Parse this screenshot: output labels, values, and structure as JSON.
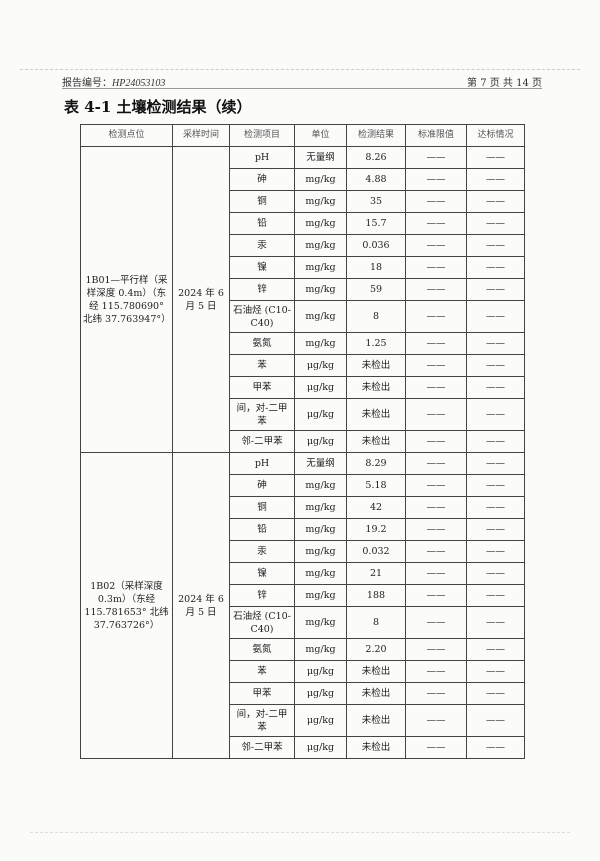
{
  "header": {
    "report_no_label": "报告编号：",
    "report_no": "HP24053103",
    "page_text": "第 7 页 共 14 页"
  },
  "title": "表 4-1 土壤检测结果（续）",
  "columns": [
    "检测点位",
    "采样时间",
    "检测项目",
    "单位",
    "检测结果",
    "标准限值",
    "达标情况"
  ],
  "groups": [
    {
      "location": "1B01—平行样（采样深度 0.4m）（东经 115.780690° 北纬 37.763947°）",
      "date": "2024 年 6 月 5 日",
      "rows": [
        {
          "item": "pH",
          "unit": "无量纲",
          "result": "8.26",
          "limit": "——",
          "status": "——"
        },
        {
          "item": "砷",
          "unit": "mg/kg",
          "result": "4.88",
          "limit": "——",
          "status": "——"
        },
        {
          "item": "铜",
          "unit": "mg/kg",
          "result": "35",
          "limit": "——",
          "status": "——"
        },
        {
          "item": "铅",
          "unit": "mg/kg",
          "result": "15.7",
          "limit": "——",
          "status": "——"
        },
        {
          "item": "汞",
          "unit": "mg/kg",
          "result": "0.036",
          "limit": "——",
          "status": "——"
        },
        {
          "item": "镍",
          "unit": "mg/kg",
          "result": "18",
          "limit": "——",
          "status": "——"
        },
        {
          "item": "锌",
          "unit": "mg/kg",
          "result": "59",
          "limit": "——",
          "status": "——"
        },
        {
          "item": "石油烃 (C10-C40)",
          "unit": "mg/kg",
          "result": "8",
          "limit": "——",
          "status": "——"
        },
        {
          "item": "氨氮",
          "unit": "mg/kg",
          "result": "1.25",
          "limit": "——",
          "status": "——"
        },
        {
          "item": "苯",
          "unit": "μg/kg",
          "result": "未检出",
          "limit": "——",
          "status": "——"
        },
        {
          "item": "甲苯",
          "unit": "μg/kg",
          "result": "未检出",
          "limit": "——",
          "status": "——"
        },
        {
          "item": "间，对-二甲苯",
          "unit": "μg/kg",
          "result": "未检出",
          "limit": "——",
          "status": "——"
        },
        {
          "item": "邻-二甲苯",
          "unit": "μg/kg",
          "result": "未检出",
          "limit": "——",
          "status": "——"
        }
      ]
    },
    {
      "location": "1B02（采样深度 0.3m）（东经 115.781653° 北纬 37.763726°）",
      "date": "2024 年 6 月 5 日",
      "rows": [
        {
          "item": "pH",
          "unit": "无量纲",
          "result": "8.29",
          "limit": "——",
          "status": "——"
        },
        {
          "item": "砷",
          "unit": "mg/kg",
          "result": "5.18",
          "limit": "——",
          "status": "——"
        },
        {
          "item": "铜",
          "unit": "mg/kg",
          "result": "42",
          "limit": "——",
          "status": "——"
        },
        {
          "item": "铅",
          "unit": "mg/kg",
          "result": "19.2",
          "limit": "——",
          "status": "——"
        },
        {
          "item": "汞",
          "unit": "mg/kg",
          "result": "0.032",
          "limit": "——",
          "status": "——"
        },
        {
          "item": "镍",
          "unit": "mg/kg",
          "result": "21",
          "limit": "——",
          "status": "——"
        },
        {
          "item": "锌",
          "unit": "mg/kg",
          "result": "188",
          "limit": "——",
          "status": "——"
        },
        {
          "item": "石油烃 (C10-C40)",
          "unit": "mg/kg",
          "result": "8",
          "limit": "——",
          "status": "——"
        },
        {
          "item": "氨氮",
          "unit": "mg/kg",
          "result": "2.20",
          "limit": "——",
          "status": "——"
        },
        {
          "item": "苯",
          "unit": "μg/kg",
          "result": "未检出",
          "limit": "——",
          "status": "——"
        },
        {
          "item": "甲苯",
          "unit": "μg/kg",
          "result": "未检出",
          "limit": "——",
          "status": "——"
        },
        {
          "item": "间，对-二甲苯",
          "unit": "μg/kg",
          "result": "未检出",
          "limit": "——",
          "status": "——"
        },
        {
          "item": "邻-二甲苯",
          "unit": "μg/kg",
          "result": "未检出",
          "limit": "——",
          "status": "——"
        }
      ]
    }
  ]
}
